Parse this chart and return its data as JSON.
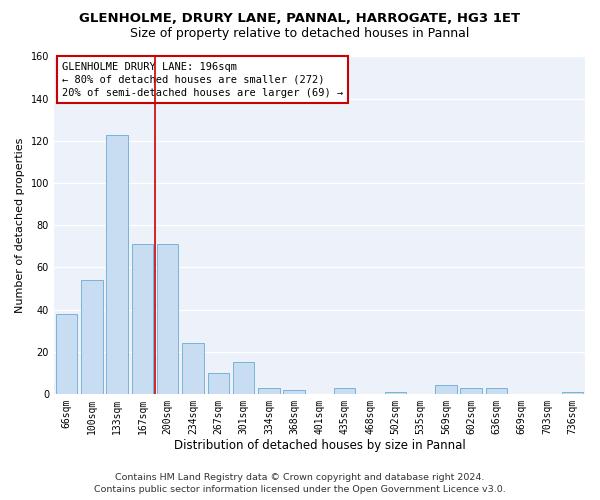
{
  "title": "GLENHOLME, DRURY LANE, PANNAL, HARROGATE, HG3 1ET",
  "subtitle": "Size of property relative to detached houses in Pannal",
  "xlabel": "Distribution of detached houses by size in Pannal",
  "ylabel": "Number of detached properties",
  "footer_line1": "Contains HM Land Registry data © Crown copyright and database right 2024.",
  "footer_line2": "Contains public sector information licensed under the Open Government Licence v3.0.",
  "bar_labels": [
    "66sqm",
    "100sqm",
    "133sqm",
    "167sqm",
    "200sqm",
    "234sqm",
    "267sqm",
    "301sqm",
    "334sqm",
    "368sqm",
    "401sqm",
    "435sqm",
    "468sqm",
    "502sqm",
    "535sqm",
    "569sqm",
    "602sqm",
    "636sqm",
    "669sqm",
    "703sqm",
    "736sqm"
  ],
  "bar_values": [
    38,
    54,
    123,
    71,
    71,
    24,
    10,
    15,
    3,
    2,
    0,
    3,
    0,
    1,
    0,
    4,
    3,
    3,
    0,
    0,
    1
  ],
  "bar_color": "#c9ddf2",
  "bar_edge_color": "#6aaad4",
  "vline_x": 3.5,
  "vline_color": "#cc0000",
  "annotation_line1": "GLENHOLME DRURY LANE: 196sqm",
  "annotation_line2": "← 80% of detached houses are smaller (272)",
  "annotation_line3": "20% of semi-detached houses are larger (69) →",
  "annotation_box_edgecolor": "#cc0000",
  "ylim_max": 160,
  "yticks": [
    0,
    20,
    40,
    60,
    80,
    100,
    120,
    140,
    160
  ],
  "bg_color": "#ffffff",
  "plot_bg_color": "#edf2fa",
  "grid_color": "#ffffff",
  "title_fontsize": 9.5,
  "subtitle_fontsize": 9,
  "ylabel_fontsize": 8,
  "xlabel_fontsize": 8.5,
  "tick_fontsize": 7,
  "annot_fontsize": 7.5,
  "footer_fontsize": 6.8
}
